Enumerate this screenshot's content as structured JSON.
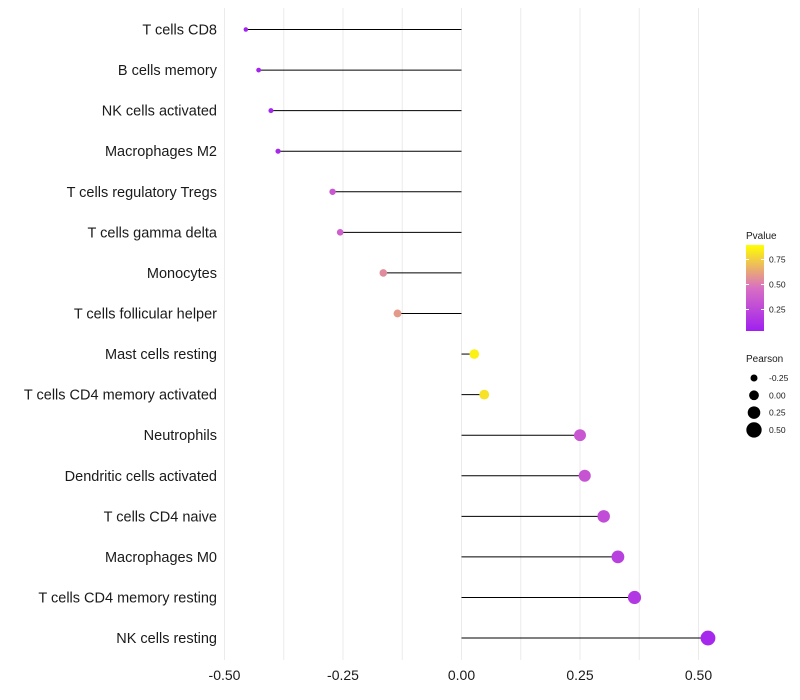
{
  "chart_data": {
    "type": "lollipop",
    "title": "",
    "xlabel": "",
    "ylabel": "",
    "xlim": [
      -0.5,
      0.5
    ],
    "xticks": [
      -0.5,
      -0.25,
      0.0,
      0.25,
      0.5
    ],
    "xtick_labels": [
      "-0.50",
      "-0.25",
      "0.00",
      "0.25",
      "0.50"
    ],
    "grid": true,
    "categories": [
      "T cells CD8",
      "B cells memory",
      "NK cells activated",
      "Macrophages M2",
      "T cells regulatory  Tregs ",
      "T cells gamma delta",
      "Monocytes",
      "T cells follicular helper",
      "Mast cells resting",
      "T cells CD4 memory activated",
      "Neutrophils",
      "Dendritic cells activated",
      "T cells CD4 naive",
      "Macrophages M0",
      "T cells CD4 memory resting",
      "NK cells resting"
    ],
    "pearson": [
      -0.455,
      -0.428,
      -0.402,
      -0.387,
      -0.272,
      -0.256,
      -0.165,
      -0.135,
      0.027,
      0.048,
      0.25,
      0.26,
      0.3,
      0.33,
      0.365,
      0.52
    ],
    "pvalue": [
      0.02,
      0.03,
      0.04,
      0.05,
      0.35,
      0.4,
      0.6,
      0.65,
      0.95,
      0.9,
      0.35,
      0.33,
      0.28,
      0.2,
      0.15,
      0.05
    ],
    "legend": {
      "position": "right",
      "color": {
        "title": "Pvalue",
        "ticks": [
          0.75,
          0.5,
          0.25
        ],
        "tick_labels": [
          "0.75",
          "0.50",
          "0.25"
        ],
        "colors": [
          "#a020f0",
          "#d96fc3",
          "#ffff00"
        ]
      },
      "size": {
        "title": "Pearson",
        "values": [
          -0.25,
          0.0,
          0.25,
          0.5
        ],
        "labels": [
          "-0.25",
          "0.00",
          "0.25",
          "0.50"
        ]
      }
    }
  }
}
